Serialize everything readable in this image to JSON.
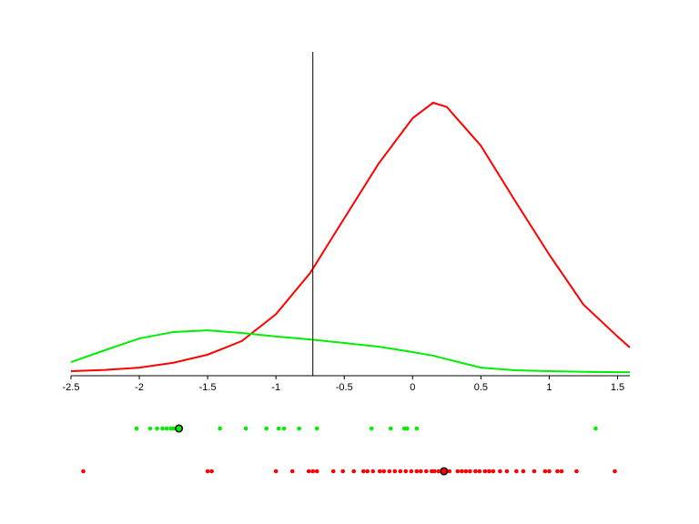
{
  "chart_data": {
    "type": "line",
    "x": [
      -2.5,
      -2.25,
      -2.0,
      -1.75,
      -1.5,
      -1.25,
      -1.0,
      -0.75,
      -0.5,
      -0.25,
      0,
      0.15,
      0.25,
      0.5,
      0.75,
      1.0,
      1.25,
      1.5,
      1.59
    ],
    "series": [
      {
        "color": "#ff0000",
        "values": [
          0.014,
          0.018,
          0.025,
          0.04,
          0.065,
          0.107,
          0.19,
          0.317,
          0.486,
          0.654,
          0.795,
          0.843,
          0.83,
          0.71,
          0.54,
          0.374,
          0.22,
          0.121,
          0.087
        ]
      },
      {
        "color": "#00ee00",
        "values": [
          0.042,
          0.079,
          0.115,
          0.135,
          0.14,
          0.132,
          0.121,
          0.112,
          0.101,
          0.09,
          0.073,
          0.062,
          0.051,
          0.025,
          0.017,
          0.014,
          0.012,
          0.011,
          0.011
        ]
      }
    ],
    "xlim": [
      -2.5,
      1.59
    ],
    "ylim": [
      0,
      1
    ],
    "xticks": [
      -2.5,
      -2,
      -1.5,
      -1,
      -0.5,
      0,
      0.5,
      1,
      1.5
    ],
    "vline": -0.73,
    "rugs": [
      {
        "color": "#00ee00",
        "mean": -1.71,
        "values": [
          -2.02,
          -1.92,
          -1.87,
          -1.83,
          -1.8,
          -1.77,
          -1.75,
          -1.41,
          -1.22,
          -1.07,
          -0.98,
          -0.94,
          -0.83,
          -0.7,
          -0.3,
          -0.16,
          -0.06,
          -0.04,
          0.03,
          1.34
        ]
      },
      {
        "color": "#ff0000",
        "mean": 0.23,
        "values": [
          -2.41,
          -1.5,
          -1.47,
          -1.0,
          -0.88,
          -0.76,
          -0.73,
          -0.7,
          -0.58,
          -0.51,
          -0.43,
          -0.36,
          -0.33,
          -0.29,
          -0.24,
          -0.21,
          -0.17,
          -0.13,
          -0.09,
          -0.05,
          -0.01,
          0.03,
          0.06,
          0.1,
          0.14,
          0.16,
          0.19,
          0.22,
          0.27,
          0.33,
          0.36,
          0.39,
          0.42,
          0.46,
          0.49,
          0.53,
          0.56,
          0.59,
          0.64,
          0.69,
          0.76,
          0.81,
          0.89,
          0.97,
          1.0,
          1.06,
          1.09,
          1.2,
          1.48
        ]
      }
    ]
  }
}
